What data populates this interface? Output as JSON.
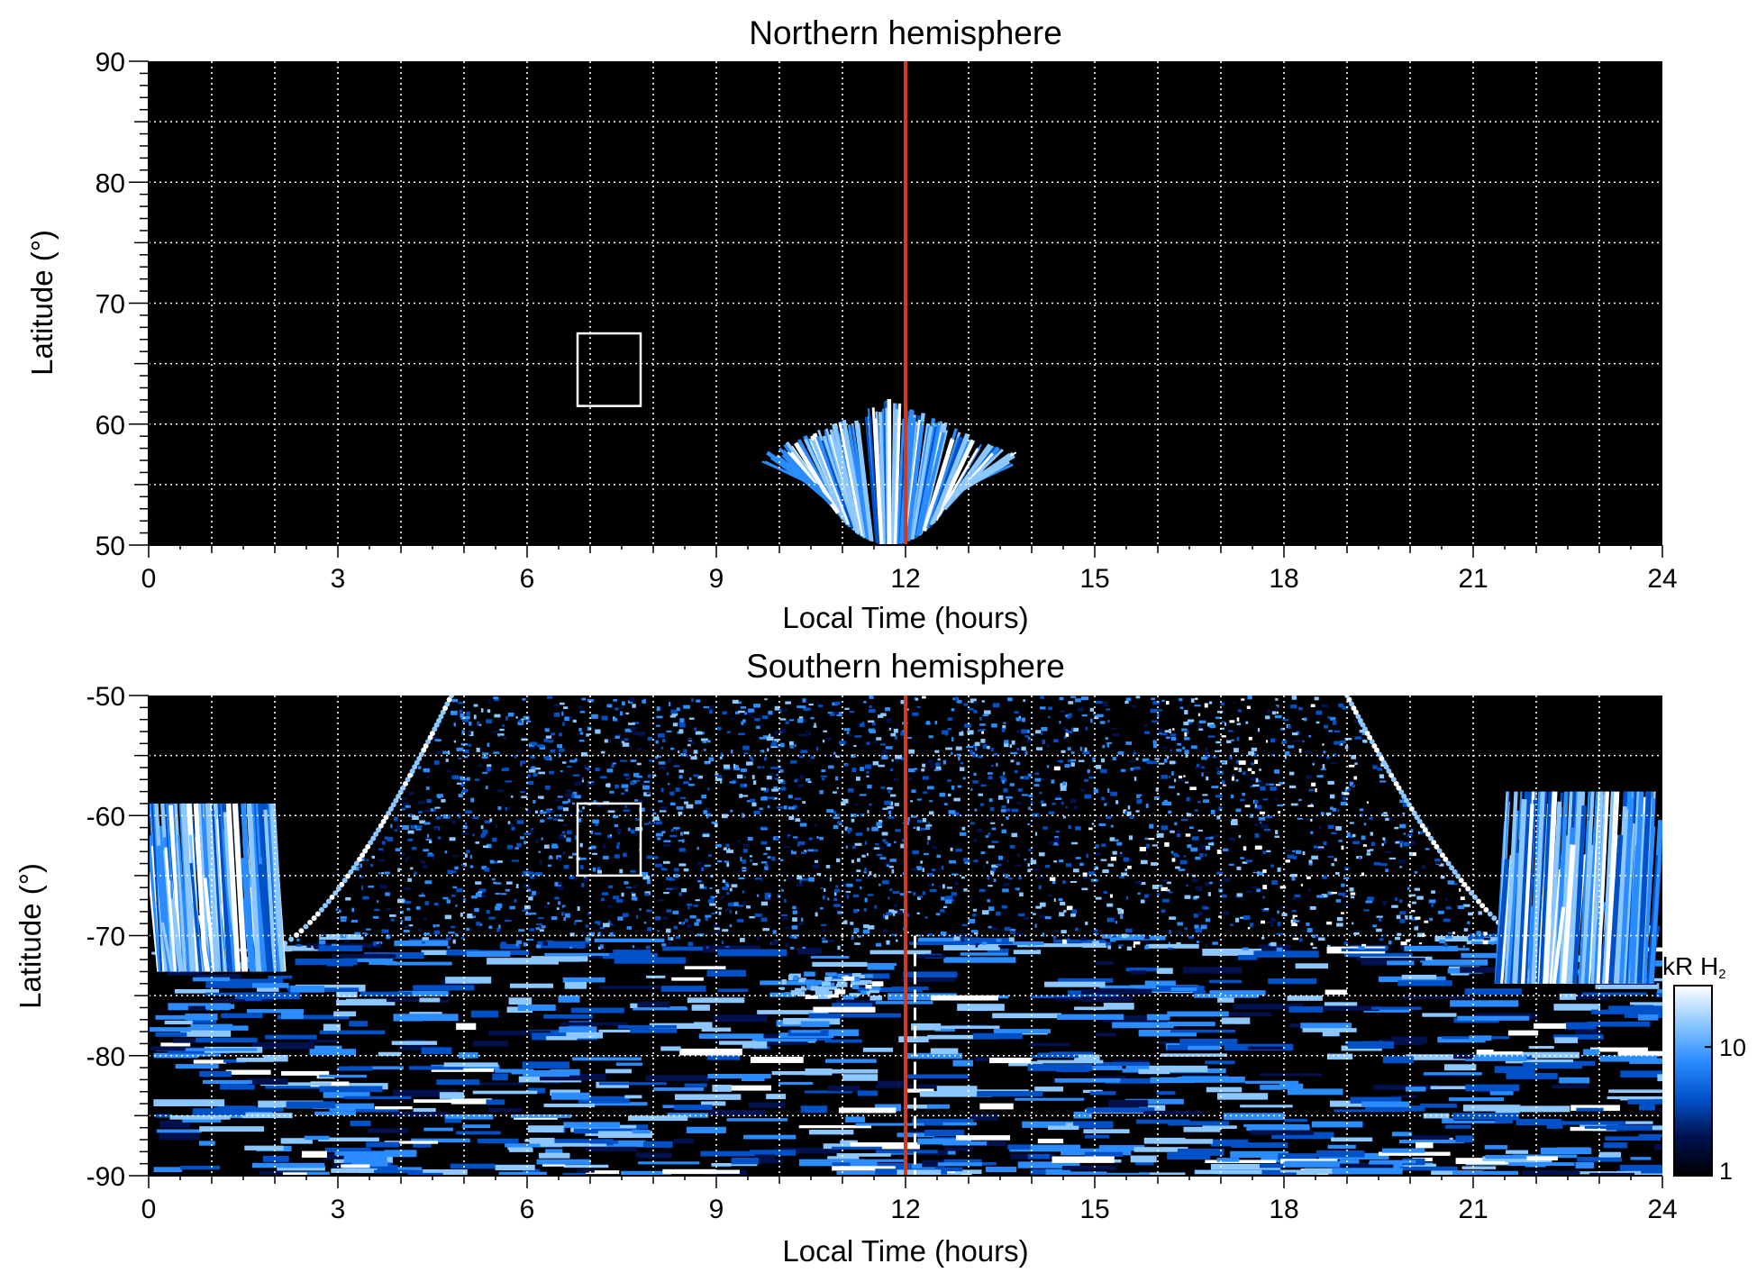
{
  "chart_data": [
    {
      "type": "heatmap",
      "title": "Northern hemisphere",
      "xlabel": "Local Time (hours)",
      "ylabel": "Latitude (°)",
      "xlim": [
        0,
        24
      ],
      "ylim": [
        50,
        90
      ],
      "xticks": [
        "0",
        "3",
        "6",
        "9",
        "12",
        "15",
        "18",
        "21",
        "24"
      ],
      "yticks": [
        "50",
        "60",
        "70",
        "80",
        "90"
      ],
      "xtick_values": [
        0,
        3,
        6,
        9,
        12,
        15,
        18,
        21,
        24
      ],
      "ytick_values": [
        50,
        60,
        70,
        80,
        90
      ],
      "grid": true,
      "background": "#000000",
      "reference_line": {
        "x": 12,
        "color": "#d23a1e"
      },
      "box": {
        "x": [
          6.8,
          7.8
        ],
        "y": [
          61.5,
          67.5
        ]
      },
      "emission_regions": [
        {
          "x_range": [
            9.7,
            13.8
          ],
          "lat_top": [
            57,
            61.5
          ],
          "lat_bottom": 50,
          "brightness": "high"
        }
      ]
    },
    {
      "type": "heatmap",
      "title": "Southern hemisphere",
      "xlabel": "Local Time (hours)",
      "ylabel": "Latitude (°)",
      "xlim": [
        0,
        24
      ],
      "ylim": [
        -90,
        -50
      ],
      "xticks": [
        "0",
        "3",
        "6",
        "9",
        "12",
        "15",
        "18",
        "21",
        "24"
      ],
      "yticks": [
        "-90",
        "-80",
        "-70",
        "-60",
        "-50"
      ],
      "xtick_values": [
        0,
        3,
        6,
        9,
        12,
        15,
        18,
        21,
        24
      ],
      "ytick_values": [
        -90,
        -80,
        -70,
        -60,
        -50
      ],
      "grid": true,
      "background": "#000000",
      "reference_line": {
        "x": 12,
        "color": "#d23a1e"
      },
      "secondary_line": {
        "x": 12.15,
        "color": "#ffffff"
      },
      "box": {
        "x": [
          6.8,
          7.8
        ],
        "y": [
          -65,
          -59
        ]
      },
      "coverage_edge": {
        "left_x_at_top": 4.8,
        "right_x_at_top": 19.0,
        "left_x_at_lat_-71": 2.0,
        "right_x_at_lat_-71": 22.0
      },
      "emission_regions": [
        {
          "x_range": [
            0,
            2.0
          ],
          "lat_range": [
            -73,
            -59
          ],
          "brightness": "high"
        },
        {
          "x_range": [
            21.5,
            24
          ],
          "lat_range": [
            -74,
            -58
          ],
          "brightness": "high"
        },
        {
          "x_range": [
            10.0,
            11.5
          ],
          "lat_range": [
            -75,
            -73
          ],
          "brightness": "high"
        }
      ],
      "colorbar": {
        "label": "kR H",
        "label_subscript": "2",
        "scale": "log",
        "ticks": [
          "1",
          "10"
        ],
        "tick_values": [
          1,
          10
        ],
        "range": [
          1,
          30
        ],
        "colors": [
          "#000000",
          "#00114d",
          "#0050c8",
          "#2a8cff",
          "#8cc8ff",
          "#ffffff"
        ]
      }
    }
  ]
}
